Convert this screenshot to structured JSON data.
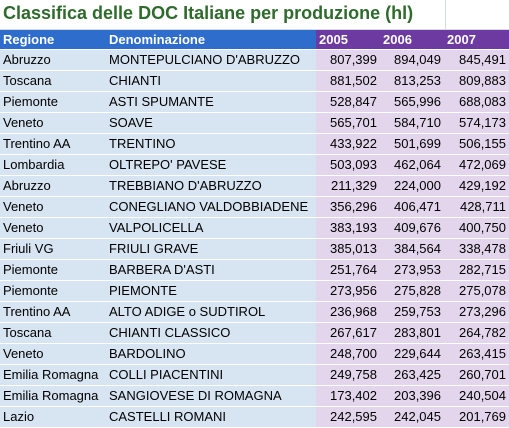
{
  "title": "Classifica delle DOC Italiane per produzione (hl)",
  "headers": {
    "regione": "Regione",
    "denominazione": "Denominazione",
    "y2005": "2005",
    "y2006": "2006",
    "y2007": "2007"
  },
  "rows": [
    {
      "regione": "Abruzzo",
      "denominazione": "MONTEPULCIANO D'ABRUZZO",
      "y2005": "807,399",
      "y2006": "894,049",
      "y2007": "845,491"
    },
    {
      "regione": "Toscana",
      "denominazione": "CHIANTI",
      "y2005": "881,502",
      "y2006": "813,253",
      "y2007": "809,883"
    },
    {
      "regione": "Piemonte",
      "denominazione": "ASTI SPUMANTE",
      "y2005": "528,847",
      "y2006": "565,996",
      "y2007": "688,083"
    },
    {
      "regione": "Veneto",
      "denominazione": "SOAVE",
      "y2005": "565,701",
      "y2006": "584,710",
      "y2007": "574,173"
    },
    {
      "regione": "Trentino AA",
      "denominazione": "TRENTINO",
      "y2005": "433,922",
      "y2006": "501,699",
      "y2007": "506,155"
    },
    {
      "regione": "Lombardia",
      "denominazione": "OLTREPO' PAVESE",
      "y2005": "503,093",
      "y2006": "462,064",
      "y2007": "472,069"
    },
    {
      "regione": "Abruzzo",
      "denominazione": "TREBBIANO D'ABRUZZO",
      "y2005": "211,329",
      "y2006": "224,000",
      "y2007": "429,192"
    },
    {
      "regione": "Veneto",
      "denominazione": "CONEGLIANO VALDOBBIADENE",
      "y2005": "356,296",
      "y2006": "406,471",
      "y2007": "428,711"
    },
    {
      "regione": "Veneto",
      "denominazione": "VALPOLICELLA",
      "y2005": "383,193",
      "y2006": "409,676",
      "y2007": "400,750"
    },
    {
      "regione": "Friuli VG",
      "denominazione": "FRIULI  GRAVE",
      "y2005": "385,013",
      "y2006": "384,564",
      "y2007": "338,478"
    },
    {
      "regione": "Piemonte",
      "denominazione": "BARBERA D'ASTI",
      "y2005": "251,764",
      "y2006": "273,953",
      "y2007": "282,715"
    },
    {
      "regione": "Piemonte",
      "denominazione": "PIEMONTE",
      "y2005": "273,956",
      "y2006": "275,828",
      "y2007": "275,078"
    },
    {
      "regione": "Trentino AA",
      "denominazione": "ALTO ADIGE o SUDTIROL",
      "y2005": "236,968",
      "y2006": "259,753",
      "y2007": "273,296"
    },
    {
      "regione": "Toscana",
      "denominazione": "CHIANTI CLASSICO",
      "y2005": "267,617",
      "y2006": "283,801",
      "y2007": "264,782"
    },
    {
      "regione": "Veneto",
      "denominazione": "BARDOLINO",
      "y2005": "248,700",
      "y2006": "229,644",
      "y2007": "263,415"
    },
    {
      "regione": "Emilia Romagna",
      "denominazione": "COLLI PIACENTINI",
      "y2005": "249,758",
      "y2006": "263,425",
      "y2007": "260,701"
    },
    {
      "regione": "Emilia Romagna",
      "denominazione": "SANGIOVESE DI ROMAGNA",
      "y2005": "173,402",
      "y2006": "203,396",
      "y2007": "240,504"
    },
    {
      "regione": "Lazio",
      "denominazione": "CASTELLI ROMANI",
      "y2005": "242,595",
      "y2006": "242,045",
      "y2007": "201,769"
    }
  ],
  "colors": {
    "title": "#2e6b2c",
    "header_blue": "#2f6dcc",
    "header_purple": "#6c3aa0",
    "cell_blue": "#d7e4f1",
    "cell_purple": "#e3d6ec"
  }
}
